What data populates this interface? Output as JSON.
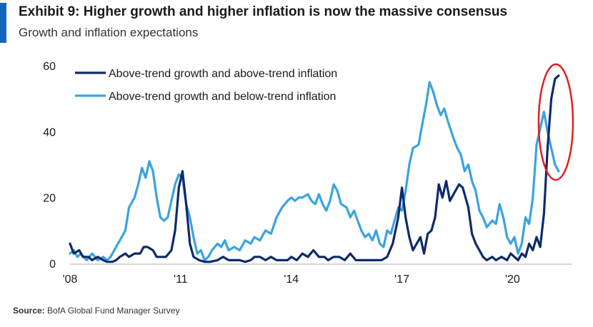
{
  "header": {
    "title": "Exhibit 9: Higher growth and higher inflation is now the massive consensus",
    "subtitle": "Growth and inflation expectations"
  },
  "footer": {
    "source_label": "Source:",
    "source_text": "BofA Global Fund Manager Survey"
  },
  "colors": {
    "accent": "#1565c0",
    "series_dark": "#0e2a6b",
    "series_light": "#3aa3df",
    "highlight_ellipse": "#e02020"
  },
  "chart_data": {
    "type": "line",
    "title": "Growth and inflation expectations",
    "xlabel": "",
    "ylabel": "",
    "xlim": [
      2008,
      2021.6
    ],
    "ylim": [
      0,
      60
    ],
    "x_ticks": [
      {
        "value": 2008,
        "label": "'08"
      },
      {
        "value": 2011,
        "label": "'11"
      },
      {
        "value": 2014,
        "label": "'14"
      },
      {
        "value": 2017,
        "label": "'17"
      },
      {
        "value": 2020,
        "label": "'20"
      }
    ],
    "y_ticks": [
      0,
      20,
      40,
      60
    ],
    "grid": false,
    "legend_position": "top-left",
    "annotation": "red ellipse around latest readings",
    "series": [
      {
        "name": "Above-trend growth and above-trend inflation",
        "color": "#0e2a6b",
        "points": [
          [
            2008.0,
            6
          ],
          [
            2008.1,
            3
          ],
          [
            2008.25,
            4
          ],
          [
            2008.35,
            2
          ],
          [
            2008.5,
            2
          ],
          [
            2008.6,
            1
          ],
          [
            2008.75,
            2
          ],
          [
            2008.9,
            1
          ],
          [
            2009.0,
            0.5
          ],
          [
            2009.15,
            0.5
          ],
          [
            2009.25,
            1
          ],
          [
            2009.35,
            2
          ],
          [
            2009.5,
            3
          ],
          [
            2009.6,
            2
          ],
          [
            2009.75,
            3
          ],
          [
            2009.9,
            3
          ],
          [
            2010.0,
            5
          ],
          [
            2010.1,
            5
          ],
          [
            2010.25,
            4
          ],
          [
            2010.35,
            2
          ],
          [
            2010.5,
            2
          ],
          [
            2010.6,
            2
          ],
          [
            2010.75,
            4
          ],
          [
            2010.85,
            10
          ],
          [
            2010.95,
            23
          ],
          [
            2011.05,
            28
          ],
          [
            2011.15,
            18
          ],
          [
            2011.25,
            6
          ],
          [
            2011.35,
            2
          ],
          [
            2011.5,
            1
          ],
          [
            2011.65,
            0.5
          ],
          [
            2011.8,
            0.5
          ],
          [
            2012.0,
            1
          ],
          [
            2012.15,
            2
          ],
          [
            2012.3,
            1
          ],
          [
            2012.45,
            1
          ],
          [
            2012.6,
            1
          ],
          [
            2012.75,
            0.5
          ],
          [
            2012.9,
            1
          ],
          [
            2013.0,
            2
          ],
          [
            2013.15,
            2
          ],
          [
            2013.3,
            1
          ],
          [
            2013.45,
            2
          ],
          [
            2013.6,
            1
          ],
          [
            2013.75,
            1
          ],
          [
            2013.9,
            1
          ],
          [
            2014.0,
            2
          ],
          [
            2014.15,
            1
          ],
          [
            2014.3,
            3
          ],
          [
            2014.45,
            2
          ],
          [
            2014.6,
            4
          ],
          [
            2014.75,
            2
          ],
          [
            2014.9,
            2
          ],
          [
            2015.0,
            1
          ],
          [
            2015.15,
            2
          ],
          [
            2015.3,
            2
          ],
          [
            2015.45,
            1
          ],
          [
            2015.6,
            3
          ],
          [
            2015.75,
            1
          ],
          [
            2015.9,
            1
          ],
          [
            2016.0,
            1
          ],
          [
            2016.15,
            1
          ],
          [
            2016.3,
            1
          ],
          [
            2016.45,
            1
          ],
          [
            2016.6,
            2
          ],
          [
            2016.75,
            6
          ],
          [
            2016.9,
            14
          ],
          [
            2017.0,
            23
          ],
          [
            2017.1,
            14
          ],
          [
            2017.2,
            8
          ],
          [
            2017.3,
            4
          ],
          [
            2017.4,
            6
          ],
          [
            2017.5,
            8
          ],
          [
            2017.6,
            3
          ],
          [
            2017.7,
            9
          ],
          [
            2017.8,
            10
          ],
          [
            2017.9,
            14
          ],
          [
            2018.0,
            24
          ],
          [
            2018.1,
            20
          ],
          [
            2018.2,
            25
          ],
          [
            2018.3,
            19
          ],
          [
            2018.45,
            22
          ],
          [
            2018.55,
            24
          ],
          [
            2018.65,
            23
          ],
          [
            2018.8,
            17
          ],
          [
            2018.9,
            9
          ],
          [
            2019.0,
            6
          ],
          [
            2019.1,
            4
          ],
          [
            2019.2,
            2
          ],
          [
            2019.3,
            1
          ],
          [
            2019.45,
            2
          ],
          [
            2019.55,
            1
          ],
          [
            2019.7,
            2
          ],
          [
            2019.85,
            1
          ],
          [
            2019.95,
            3
          ],
          [
            2020.05,
            2
          ],
          [
            2020.15,
            1
          ],
          [
            2020.25,
            3
          ],
          [
            2020.35,
            2
          ],
          [
            2020.45,
            6
          ],
          [
            2020.55,
            4
          ],
          [
            2020.65,
            8
          ],
          [
            2020.75,
            5
          ],
          [
            2020.85,
            15
          ],
          [
            2020.95,
            35
          ],
          [
            2021.05,
            50
          ],
          [
            2021.15,
            56
          ],
          [
            2021.25,
            57
          ]
        ]
      },
      {
        "name": "Above-trend growth and below-trend inflation",
        "color": "#3aa3df",
        "points": [
          [
            2008.0,
            3
          ],
          [
            2008.1,
            4
          ],
          [
            2008.2,
            2
          ],
          [
            2008.3,
            3
          ],
          [
            2008.45,
            1
          ],
          [
            2008.6,
            3
          ],
          [
            2008.75,
            1
          ],
          [
            2008.9,
            2
          ],
          [
            2009.0,
            1
          ],
          [
            2009.1,
            2
          ],
          [
            2009.2,
            4
          ],
          [
            2009.3,
            6
          ],
          [
            2009.4,
            8
          ],
          [
            2009.5,
            10
          ],
          [
            2009.6,
            17
          ],
          [
            2009.75,
            20
          ],
          [
            2009.85,
            24
          ],
          [
            2009.95,
            29
          ],
          [
            2010.05,
            26
          ],
          [
            2010.15,
            31
          ],
          [
            2010.25,
            28
          ],
          [
            2010.35,
            20
          ],
          [
            2010.45,
            14
          ],
          [
            2010.55,
            13
          ],
          [
            2010.65,
            14
          ],
          [
            2010.75,
            19
          ],
          [
            2010.85,
            24
          ],
          [
            2010.95,
            27
          ],
          [
            2011.05,
            26
          ],
          [
            2011.15,
            18
          ],
          [
            2011.25,
            14
          ],
          [
            2011.35,
            8
          ],
          [
            2011.45,
            3
          ],
          [
            2011.55,
            4
          ],
          [
            2011.65,
            1
          ],
          [
            2011.75,
            2
          ],
          [
            2011.85,
            4
          ],
          [
            2012.0,
            6
          ],
          [
            2012.1,
            5
          ],
          [
            2012.2,
            7
          ],
          [
            2012.3,
            4
          ],
          [
            2012.45,
            5
          ],
          [
            2012.6,
            4
          ],
          [
            2012.75,
            7
          ],
          [
            2012.9,
            6
          ],
          [
            2013.0,
            8
          ],
          [
            2013.15,
            7
          ],
          [
            2013.3,
            10
          ],
          [
            2013.45,
            9
          ],
          [
            2013.6,
            14
          ],
          [
            2013.75,
            17
          ],
          [
            2013.9,
            19
          ],
          [
            2014.0,
            20
          ],
          [
            2014.1,
            19
          ],
          [
            2014.2,
            20
          ],
          [
            2014.3,
            20
          ],
          [
            2014.45,
            21
          ],
          [
            2014.55,
            19
          ],
          [
            2014.65,
            18
          ],
          [
            2014.75,
            21
          ],
          [
            2014.85,
            18
          ],
          [
            2014.95,
            16
          ],
          [
            2015.05,
            19
          ],
          [
            2015.15,
            24
          ],
          [
            2015.25,
            22
          ],
          [
            2015.35,
            18
          ],
          [
            2015.5,
            17
          ],
          [
            2015.6,
            14
          ],
          [
            2015.7,
            16
          ],
          [
            2015.8,
            13
          ],
          [
            2015.9,
            10
          ],
          [
            2016.0,
            8
          ],
          [
            2016.1,
            9
          ],
          [
            2016.2,
            7
          ],
          [
            2016.3,
            10
          ],
          [
            2016.4,
            6
          ],
          [
            2016.5,
            5
          ],
          [
            2016.6,
            10
          ],
          [
            2016.7,
            9
          ],
          [
            2016.8,
            13
          ],
          [
            2016.9,
            17
          ],
          [
            2017.0,
            16
          ],
          [
            2017.1,
            22
          ],
          [
            2017.2,
            30
          ],
          [
            2017.3,
            35
          ],
          [
            2017.45,
            36
          ],
          [
            2017.55,
            42
          ],
          [
            2017.65,
            48
          ],
          [
            2017.75,
            55
          ],
          [
            2017.85,
            52
          ],
          [
            2017.95,
            48
          ],
          [
            2018.05,
            45
          ],
          [
            2018.15,
            47
          ],
          [
            2018.25,
            43
          ],
          [
            2018.4,
            38
          ],
          [
            2018.5,
            35
          ],
          [
            2018.6,
            33
          ],
          [
            2018.7,
            28
          ],
          [
            2018.8,
            30
          ],
          [
            2018.9,
            25
          ],
          [
            2019.0,
            22
          ],
          [
            2019.1,
            16
          ],
          [
            2019.2,
            14
          ],
          [
            2019.3,
            11
          ],
          [
            2019.45,
            13
          ],
          [
            2019.55,
            12
          ],
          [
            2019.65,
            18
          ],
          [
            2019.75,
            14
          ],
          [
            2019.85,
            8
          ],
          [
            2019.95,
            6
          ],
          [
            2020.05,
            8
          ],
          [
            2020.15,
            3
          ],
          [
            2020.25,
            6
          ],
          [
            2020.35,
            14
          ],
          [
            2020.45,
            12
          ],
          [
            2020.55,
            20
          ],
          [
            2020.65,
            36
          ],
          [
            2020.75,
            41
          ],
          [
            2020.85,
            46
          ],
          [
            2020.95,
            40
          ],
          [
            2021.05,
            35
          ],
          [
            2021.15,
            30
          ],
          [
            2021.25,
            28
          ]
        ]
      }
    ]
  }
}
